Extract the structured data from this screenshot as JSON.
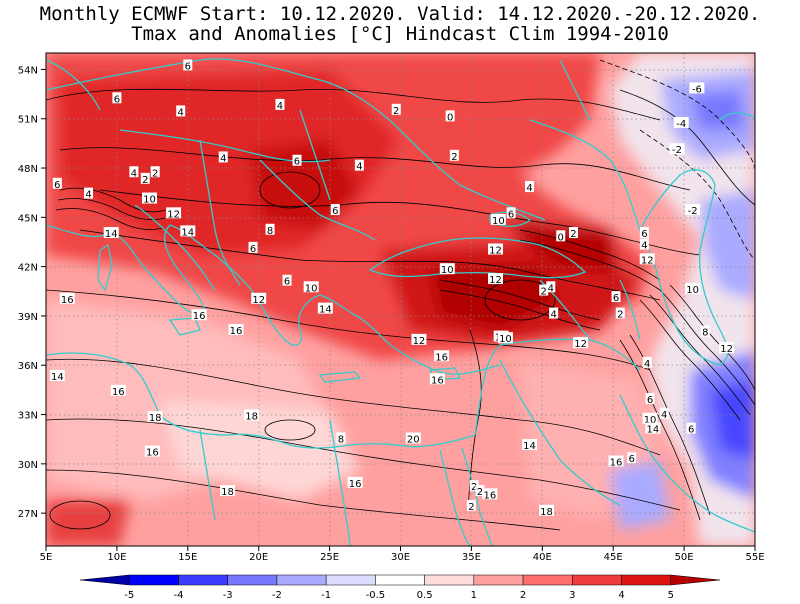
{
  "title_line1": "Monthly ECMWF Start: 10.12.2020. Valid: 14.12.2020.-20.12.2020.",
  "title_line2": "Tmax and Anomalies [°C] Hindcast Clim 1994-2010",
  "map": {
    "lon_range": [
      5,
      55
    ],
    "lat_range": [
      25,
      55
    ],
    "lon_ticks": [
      "5E",
      "10E",
      "15E",
      "20E",
      "25E",
      "30E",
      "35E",
      "40E",
      "45E",
      "50E",
      "55E"
    ],
    "lat_ticks": [
      "27N",
      "30N",
      "33N",
      "36N",
      "39N",
      "42N",
      "45N",
      "48N",
      "51N",
      "54N"
    ],
    "grid": "dotted",
    "border_color": "#33cccc"
  },
  "colorbar": {
    "labels": [
      "-5",
      "-4",
      "-3",
      "-2",
      "-1",
      "-0.5",
      "0.5",
      "1",
      "2",
      "3",
      "4",
      "5"
    ],
    "colors": [
      "#0000a8",
      "#0000ff",
      "#3c3cff",
      "#7878ff",
      "#aaaaff",
      "#dcdcff",
      "#ffffff",
      "#ffdcdc",
      "#ffa0a0",
      "#ff6e6e",
      "#f03c3c",
      "#dc1414",
      "#b40000"
    ]
  },
  "contour_labels": [
    {
      "t": "6",
      "lon": 15.0,
      "lat": 54.0
    },
    {
      "t": "6",
      "lon": 10.0,
      "lat": 52.0
    },
    {
      "t": "4",
      "lon": 14.5,
      "lat": 51.2
    },
    {
      "t": "4",
      "lon": 21.5,
      "lat": 51.6
    },
    {
      "t": "0",
      "lon": 33.5,
      "lat": 50.9
    },
    {
      "t": "2",
      "lon": 29.7,
      "lat": 51.3
    },
    {
      "t": "4",
      "lon": 17.5,
      "lat": 48.4
    },
    {
      "t": "6",
      "lon": 22.7,
      "lat": 48.2
    },
    {
      "t": "4",
      "lon": 27.1,
      "lat": 47.9
    },
    {
      "t": "2",
      "lon": 33.8,
      "lat": 48.5
    },
    {
      "t": "6",
      "lon": 5.8,
      "lat": 46.8
    },
    {
      "t": "4",
      "lon": 8.0,
      "lat": 46.2
    },
    {
      "t": "4",
      "lon": 11.2,
      "lat": 47.5
    },
    {
      "t": "2",
      "lon": 12.0,
      "lat": 47.1
    },
    {
      "t": "2",
      "lon": 12.7,
      "lat": 47.5
    },
    {
      "t": "10",
      "lon": 12.3,
      "lat": 45.9
    },
    {
      "t": "12",
      "lon": 14.0,
      "lat": 45.0
    },
    {
      "t": "14",
      "lon": 9.6,
      "lat": 43.8
    },
    {
      "t": "14",
      "lon": 15.0,
      "lat": 43.9
    },
    {
      "t": "6",
      "lon": 25.4,
      "lat": 45.2
    },
    {
      "t": "4",
      "lon": 39.1,
      "lat": 46.6
    },
    {
      "t": "10",
      "lon": 36.9,
      "lat": 44.6
    },
    {
      "t": "6",
      "lon": 37.8,
      "lat": 45.0
    },
    {
      "t": "8",
      "lon": 20.8,
      "lat": 44.0
    },
    {
      "t": "6",
      "lon": 19.6,
      "lat": 42.9
    },
    {
      "t": "12",
      "lon": 36.7,
      "lat": 42.8
    },
    {
      "t": "0",
      "lon": 41.3,
      "lat": 43.6
    },
    {
      "t": "2",
      "lon": 42.2,
      "lat": 43.8
    },
    {
      "t": "6",
      "lon": 47.2,
      "lat": 43.8
    },
    {
      "t": "4",
      "lon": 47.2,
      "lat": 43.1
    },
    {
      "t": "12",
      "lon": 47.4,
      "lat": 42.2
    },
    {
      "t": "10",
      "lon": 33.3,
      "lat": 41.6
    },
    {
      "t": "12",
      "lon": 36.7,
      "lat": 41.0
    },
    {
      "t": "6",
      "lon": 22.0,
      "lat": 40.9
    },
    {
      "t": "10",
      "lon": 23.7,
      "lat": 40.5
    },
    {
      "t": "2",
      "lon": 40.1,
      "lat": 40.3
    },
    {
      "t": "4",
      "lon": 40.6,
      "lat": 40.5
    },
    {
      "t": "12",
      "lon": 20.0,
      "lat": 39.8
    },
    {
      "t": "14",
      "lon": 24.7,
      "lat": 39.2
    },
    {
      "t": "6",
      "lon": 45.2,
      "lat": 39.9
    },
    {
      "t": "4",
      "lon": 40.8,
      "lat": 38.9
    },
    {
      "t": "2",
      "lon": 45.5,
      "lat": 38.9
    },
    {
      "t": "10",
      "lon": 50.6,
      "lat": 40.4
    },
    {
      "t": "12",
      "lon": 31.3,
      "lat": 37.3
    },
    {
      "t": "14",
      "lon": 37.1,
      "lat": 37.5
    },
    {
      "t": "10",
      "lon": 37.4,
      "lat": 37.4
    },
    {
      "t": "12",
      "lon": 42.7,
      "lat": 37.1
    },
    {
      "t": "8",
      "lon": 51.5,
      "lat": 37.8
    },
    {
      "t": "16",
      "lon": 6.5,
      "lat": 39.8
    },
    {
      "t": "16",
      "lon": 15.8,
      "lat": 38.8
    },
    {
      "t": "16",
      "lon": 18.4,
      "lat": 37.9
    },
    {
      "t": "16",
      "lon": 32.9,
      "lat": 36.3
    },
    {
      "t": "14",
      "lon": 5.8,
      "lat": 35.1
    },
    {
      "t": "16",
      "lon": 10.1,
      "lat": 34.2
    },
    {
      "t": "16",
      "lon": 32.6,
      "lat": 34.9
    },
    {
      "t": "4",
      "lon": 47.4,
      "lat": 35.9
    },
    {
      "t": "12",
      "lon": 53.0,
      "lat": 36.8
    },
    {
      "t": "6",
      "lon": 47.6,
      "lat": 33.7
    },
    {
      "t": "10",
      "lon": 47.6,
      "lat": 32.5
    },
    {
      "t": "4",
      "lon": 48.6,
      "lat": 32.8
    },
    {
      "t": "14",
      "lon": 47.8,
      "lat": 31.9
    },
    {
      "t": "6",
      "lon": 50.5,
      "lat": 31.9
    },
    {
      "t": "18",
      "lon": 12.7,
      "lat": 32.6
    },
    {
      "t": "18",
      "lon": 19.5,
      "lat": 32.7
    },
    {
      "t": "8",
      "lon": 25.8,
      "lat": 31.3
    },
    {
      "t": "20",
      "lon": 30.9,
      "lat": 31.3
    },
    {
      "t": "14",
      "lon": 39.1,
      "lat": 30.9
    },
    {
      "t": "16",
      "lon": 12.5,
      "lat": 30.5
    },
    {
      "t": "16",
      "lon": 45.2,
      "lat": 29.9
    },
    {
      "t": "6",
      "lon": 46.3,
      "lat": 30.1
    },
    {
      "t": "18",
      "lon": 17.8,
      "lat": 28.1
    },
    {
      "t": "16",
      "lon": 26.8,
      "lat": 28.6
    },
    {
      "t": "2",
      "lon": 35.2,
      "lat": 28.4
    },
    {
      "t": "2",
      "lon": 35.6,
      "lat": 28.1
    },
    {
      "t": "16",
      "lon": 36.3,
      "lat": 27.9
    },
    {
      "t": "2",
      "lon": 35.0,
      "lat": 27.2
    },
    {
      "t": "18",
      "lon": 40.3,
      "lat": 26.9
    },
    {
      "t": "-6",
      "lon": 50.9,
      "lat": 52.6
    },
    {
      "t": "-4",
      "lon": 49.8,
      "lat": 50.5
    },
    {
      "t": "-2",
      "lon": 49.5,
      "lat": 48.9
    },
    {
      "t": "-2",
      "lon": 50.6,
      "lat": 45.2
    }
  ]
}
